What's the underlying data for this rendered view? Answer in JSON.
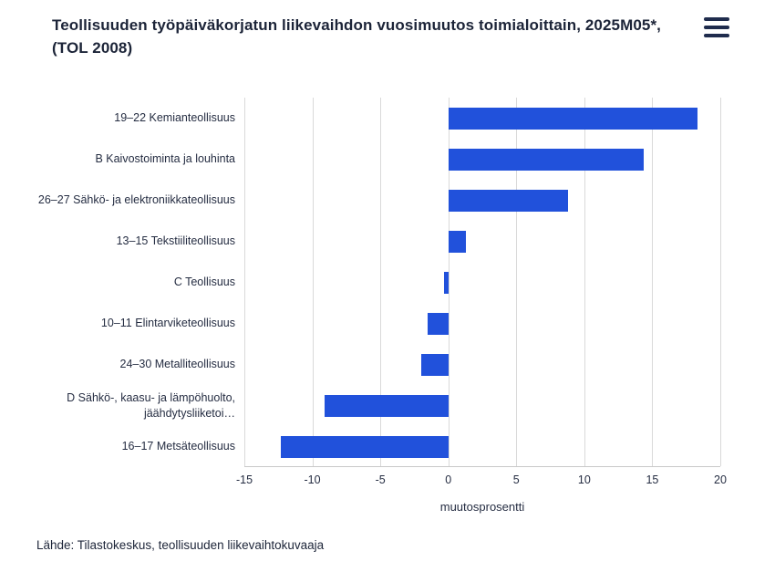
{
  "header": {
    "title": "Teollisuuden työpäiväkorjatun liikevaihdon vuosimuutos toimialoittain, 2025M05*, (TOL 2008)"
  },
  "chart_data": {
    "type": "bar",
    "orientation": "horizontal",
    "title": "Teollisuuden työpäiväkorjatun liikevaihdon vuosimuutos toimialoittain, 2025M05*, (TOL 2008)",
    "categories": [
      "19–22 Kemianteollisuus",
      "B Kaivostoiminta ja louhinta",
      "26–27 Sähkö- ja elektroniikkateollisuus",
      "13–15 Tekstiiliteollisuus",
      "C Teollisuus",
      "10–11 Elintarviketeollisuus",
      "24–30 Metalliteollisuus",
      "D Sähkö-, kaasu- ja lämpöhuolto, jäähdytysliiketoi…",
      "16–17 Metsäteollisuus"
    ],
    "values": [
      18.3,
      14.4,
      8.8,
      1.3,
      -0.3,
      -1.5,
      -2.0,
      -9.1,
      -12.3
    ],
    "xlabel": "muutosprosentti",
    "xlim": [
      -15,
      20
    ],
    "xticks": [
      -15,
      -10,
      -5,
      0,
      5,
      10,
      15,
      20
    ],
    "bar_color": "#2151db",
    "grid": true,
    "legend": "none"
  },
  "footer": {
    "source": "Lähde: Tilastokeskus, teollisuuden liikevaihtokuvaaja"
  }
}
